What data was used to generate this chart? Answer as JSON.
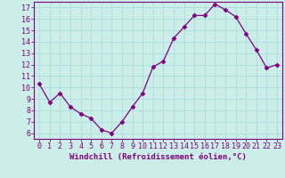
{
  "x": [
    0,
    1,
    2,
    3,
    4,
    5,
    6,
    7,
    8,
    9,
    10,
    11,
    12,
    13,
    14,
    15,
    16,
    17,
    18,
    19,
    20,
    21,
    22,
    23
  ],
  "y": [
    10.3,
    8.7,
    9.5,
    8.3,
    7.7,
    7.3,
    6.3,
    6.0,
    7.0,
    8.3,
    9.5,
    11.8,
    12.3,
    14.3,
    15.3,
    16.3,
    16.3,
    17.3,
    16.8,
    16.2,
    14.7,
    13.3,
    11.7,
    12.0
  ],
  "line_color": "#800080",
  "marker": "D",
  "marker_size": 2.5,
  "line_width": 0.9,
  "xlabel": "Windchill (Refroidissement éolien,°C)",
  "xlim": [
    -0.5,
    23.5
  ],
  "ylim": [
    5.5,
    17.5
  ],
  "yticks": [
    6,
    7,
    8,
    9,
    10,
    11,
    12,
    13,
    14,
    15,
    16,
    17
  ],
  "xtick_labels": [
    "0",
    "1",
    "2",
    "3",
    "4",
    "5",
    "6",
    "7",
    "8",
    "9",
    "10",
    "11",
    "12",
    "13",
    "14",
    "15",
    "16",
    "17",
    "18",
    "19",
    "20",
    "21",
    "22",
    "23"
  ],
  "background_color": "#cceee8",
  "grid_color": "#aadddd",
  "spine_color": "#800080",
  "tick_color": "#800080",
  "label_color": "#800080",
  "xlabel_fontsize": 6.5,
  "tick_fontsize": 6.0
}
